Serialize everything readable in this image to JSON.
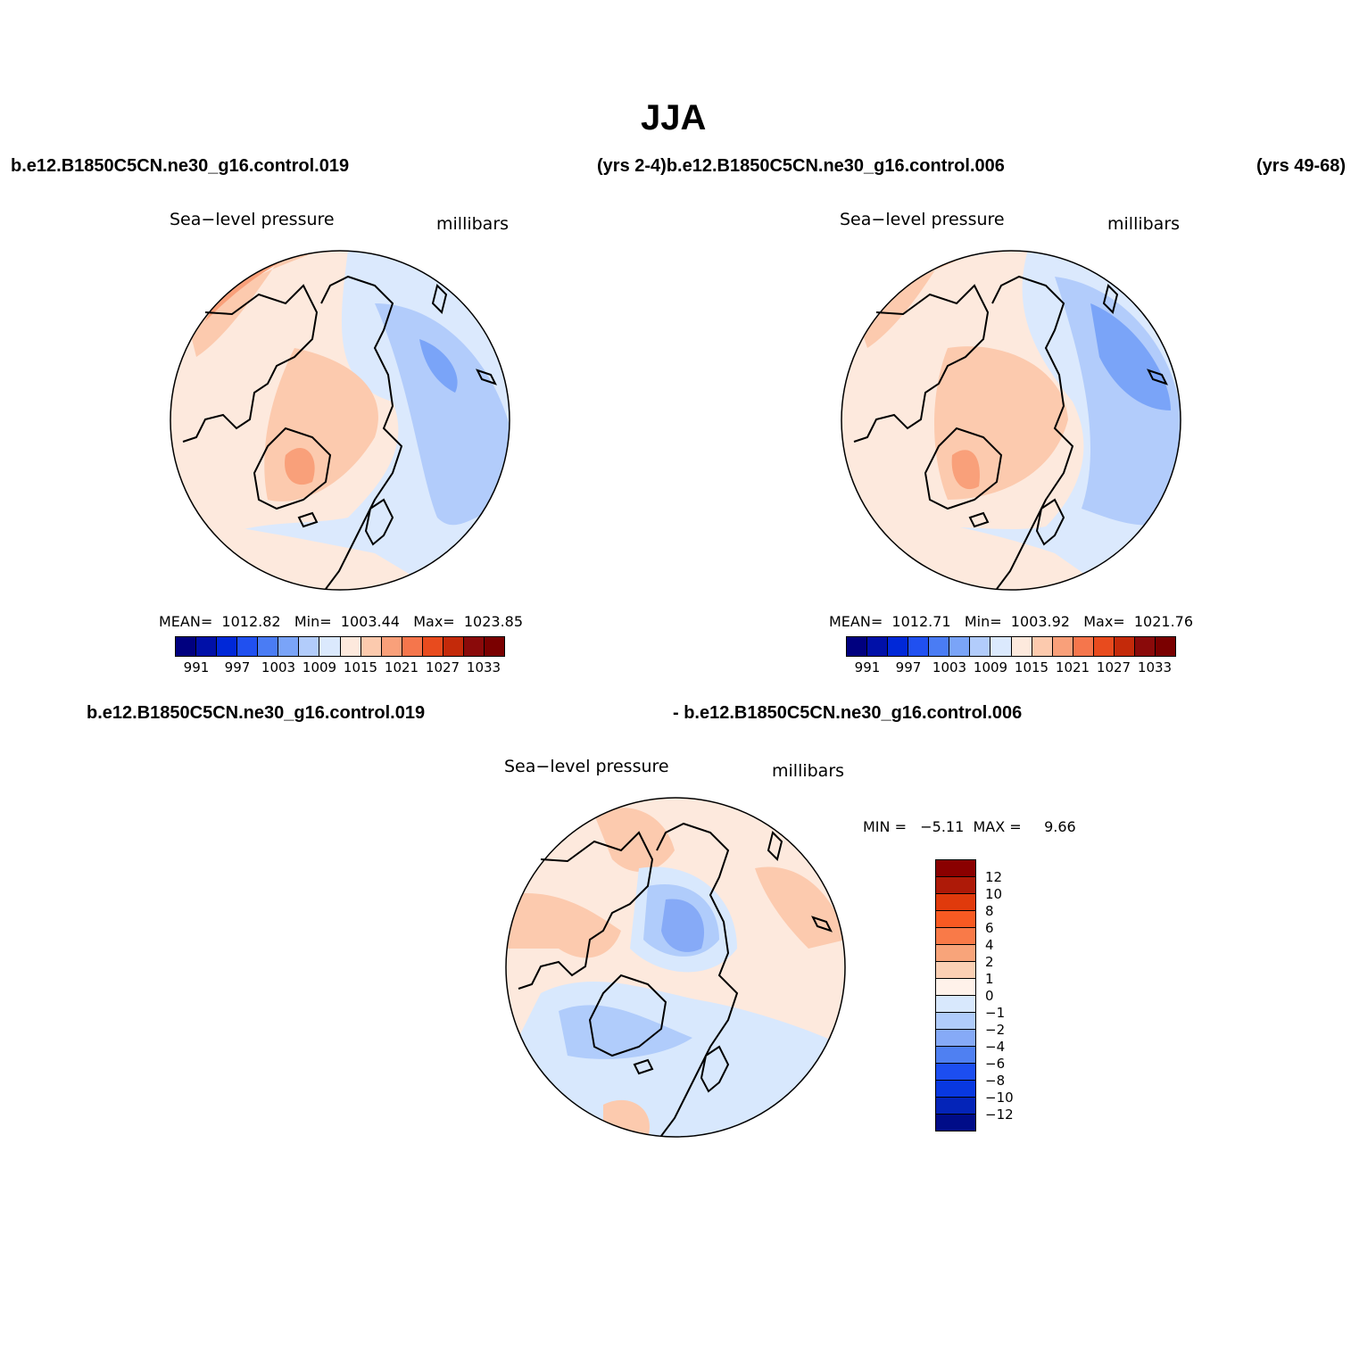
{
  "title": "JJA",
  "top_left_case": "b.e12.B1850C5CN.ne30_g16.control.019",
  "top_mid_case": "(yrs 2-4)b.e12.B1850C5CN.ne30_g16.control.006",
  "top_right_case": "(yrs 49-68)",
  "diff_case_a": "b.e12.B1850C5CN.ne30_g16.control.019",
  "diff_case_b": "- b.e12.B1850C5CN.ne30_g16.control.006",
  "panels": [
    {
      "variable": "Sea−level pressure",
      "units": "millibars",
      "stats": "MEAN=  1012.82   Min=  1003.44   Max=  1023.85"
    },
    {
      "variable": "Sea−level pressure",
      "units": "millibars",
      "stats": "MEAN=  1012.71   Min=  1003.92   Max=  1021.76"
    },
    {
      "variable": "Sea−level pressure",
      "units": "millibars",
      "stats": "MIN =   −5.11  MAX =     9.66"
    }
  ],
  "abs_colorbar": {
    "colors": [
      "#00007f",
      "#0010a8",
      "#0028d8",
      "#2050f0",
      "#4a7cf4",
      "#7aa4f8",
      "#b2ccfb",
      "#dbe9fd",
      "#fde9dd",
      "#fccaae",
      "#f9a07a",
      "#f5764c",
      "#e84b1e",
      "#c42a0a",
      "#8a0a0a",
      "#7a0000"
    ],
    "labels": [
      "991",
      "997",
      "1003",
      "1009",
      "1015",
      "1021",
      "1027",
      "1033"
    ]
  },
  "diff_colorbar": {
    "colors": [
      "#8a0000",
      "#ae1a08",
      "#e03a0c",
      "#f85a22",
      "#f97a48",
      "#f8a47a",
      "#fbd0b4",
      "#fff2ea",
      "#d8e8fd",
      "#b0ccfb",
      "#86aaf7",
      "#4f80f2",
      "#1c4ef0",
      "#0838e0",
      "#0424b8",
      "#000c88"
    ],
    "labels": [
      "12",
      "10",
      "8",
      "6",
      "4",
      "2",
      "1",
      "0",
      "−1",
      "−2",
      "−4",
      "−6",
      "−8",
      "−10",
      "−12"
    ]
  },
  "map_colors": {
    "land_outline": "#000000",
    "panel1": {
      "base": "#dbe9fd",
      "high": "#fde9dd",
      "higher": "#fccaae",
      "highest": "#f9a07a",
      "low": "#b2ccfb",
      "lower": "#7aa4f8"
    },
    "panel2": {
      "base": "#dbe9fd",
      "high": "#fde9dd",
      "higher": "#fccaae",
      "highest": "#f9a07a",
      "low": "#b2ccfb",
      "lower": "#7aa4f8"
    },
    "panel3": {
      "base": "#fde9dd",
      "pos": "#fccaae",
      "neg": "#d8e8fd",
      "neg2": "#b0ccfb",
      "neg3": "#86aaf7"
    }
  }
}
